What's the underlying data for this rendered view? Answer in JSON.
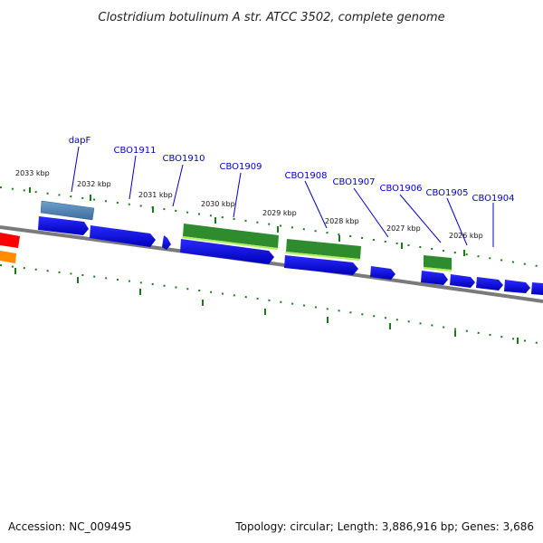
{
  "title": "Clostridium botulinum A str. ATCC 3502, complete genome",
  "footer": {
    "accession": "Accession: NC_009495",
    "topology": "Topology: circular; Length: 3,886,916 bp; Genes: 3,686"
  },
  "ticks": [
    "2033 kbp",
    "2032 kbp",
    "2031 kbp",
    "2030 kbp",
    "2029 kbp",
    "2028 kbp",
    "2027 kbp",
    "2026 kbp"
  ],
  "gene_labels": [
    "dapF",
    "CBO1911",
    "CBO1910",
    "CBO1909",
    "CBO1908",
    "CBO1907",
    "CBO1906",
    "CBO1905",
    "CBO1904"
  ],
  "colors": {
    "backbone": "#7a7a7a",
    "cds": "#0000ee",
    "feature_green": "#2e8b2e",
    "feature_lightgreen": "#aaf255",
    "feature_steelblue": "#4a7fb0",
    "tick_green": "#1a7a1a",
    "label_blue": "#0000cc",
    "red": "#ff0000",
    "orange": "#ff8c00"
  }
}
